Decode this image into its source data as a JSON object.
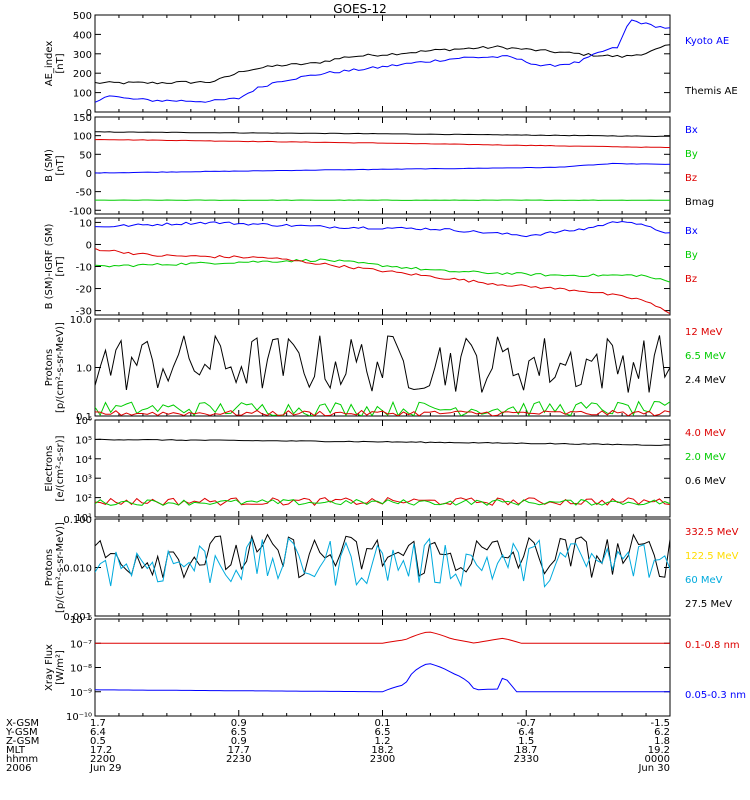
{
  "title": "GOES-12",
  "panels": [
    {
      "id": "ae",
      "ylabel": [
        "AE_index",
        "[nT]"
      ],
      "yscale": "linear",
      "ylim": [
        0,
        500
      ],
      "ticks": [
        "0",
        "100",
        "200",
        "300",
        "400",
        "500"
      ],
      "tickValues": [
        0,
        100,
        200,
        300,
        400,
        500
      ],
      "legend": [
        {
          "label": "Kyoto AE",
          "color": "#0000ff"
        },
        {
          "label": "Themis AE",
          "color": "#000000"
        }
      ]
    },
    {
      "id": "bsm",
      "ylabel": [
        "B (SM)",
        "[nT]"
      ],
      "yscale": "linear",
      "ylim": [
        -110,
        150
      ],
      "ticks": [
        "-100",
        "-50",
        "0",
        "50",
        "100",
        "150"
      ],
      "tickValues": [
        -100,
        -50,
        0,
        50,
        100,
        150
      ],
      "legend": [
        {
          "label": "Bx",
          "color": "#0000ff"
        },
        {
          "label": "By",
          "color": "#00cc00"
        },
        {
          "label": "Bz",
          "color": "#dd0000"
        },
        {
          "label": "Bmag",
          "color": "#000000"
        }
      ]
    },
    {
      "id": "bigrf",
      "ylabel": [
        "B (SM)-IGRF (SM)",
        "[nT]"
      ],
      "yscale": "linear",
      "ylim": [
        -32,
        12
      ],
      "ticks": [
        "-30",
        "-20",
        "-10",
        "0",
        "10"
      ],
      "tickValues": [
        -30,
        -20,
        -10,
        0,
        10
      ],
      "legend": [
        {
          "label": "Bx",
          "color": "#0000ff"
        },
        {
          "label": "By",
          "color": "#00cc00"
        },
        {
          "label": "Bz",
          "color": "#dd0000"
        }
      ]
    },
    {
      "id": "protons1",
      "ylabel": [
        "Protons",
        "[p/(cm²-s-sr-MeV)]"
      ],
      "yscale": "log",
      "ylim": [
        0.1,
        10
      ],
      "ticks": [
        "0.1",
        "1.0",
        "10.0"
      ],
      "tickValues": [
        0.1,
        1,
        10
      ],
      "legend": [
        {
          "label": "12 MeV",
          "color": "#dd0000"
        },
        {
          "label": "6.5 MeV",
          "color": "#00cc00"
        },
        {
          "label": "2.4 MeV",
          "color": "#000000"
        }
      ]
    },
    {
      "id": "electrons",
      "ylabel": [
        "Electrons",
        "[e/(cm²-s-sr)]"
      ],
      "yscale": "log",
      "ylim": [
        10,
        1000000
      ],
      "ticks": [
        "10¹",
        "10²",
        "10³",
        "10⁴",
        "10⁵",
        "10⁶"
      ],
      "tickValues": [
        10,
        100,
        1000,
        10000,
        100000,
        1000000
      ],
      "legend": [
        {
          "label": "4.0 MeV",
          "color": "#dd0000"
        },
        {
          "label": "2.0 MeV",
          "color": "#00cc00"
        },
        {
          "label": "0.6 MeV",
          "color": "#000000"
        }
      ]
    },
    {
      "id": "protons2",
      "ylabel": [
        "Protons",
        "[p/(cm²-s-sr-MeV)]"
      ],
      "yscale": "log",
      "ylim": [
        0.001,
        0.1
      ],
      "ticks": [
        "0.001",
        "0.010",
        "0.100"
      ],
      "tickValues": [
        0.001,
        0.01,
        0.1
      ],
      "legend": [
        {
          "label": "332.5 MeV",
          "color": "#dd0000"
        },
        {
          "label": "122.5 MeV",
          "color": "#ffdd00"
        },
        {
          "label": "60 MeV",
          "color": "#00aadd"
        },
        {
          "label": "27.5 MeV",
          "color": "#000000"
        }
      ]
    },
    {
      "id": "xray",
      "ylabel": [
        "Xray Flux",
        "[W/m²]"
      ],
      "yscale": "log",
      "ylim": [
        1e-10,
        1e-06
      ],
      "ticks": [
        "10⁻¹⁰",
        "10⁻⁹",
        "10⁻⁸",
        "10⁻⁷",
        "10⁻⁶"
      ],
      "tickValues": [
        1e-10,
        1e-09,
        1e-08,
        1e-07,
        1e-06
      ],
      "legend": [
        {
          "label": "0.1-0.8 nm",
          "color": "#dd0000"
        },
        {
          "label": "0.05-0.3 nm",
          "color": "#0000ff"
        }
      ]
    }
  ],
  "footer": {
    "rowLabels": [
      "X-GSM",
      "Y-GSM",
      "Z-GSM",
      "MLT",
      "hhmm",
      "2006"
    ],
    "columns": [
      [
        "1.7",
        "6.4",
        "0.5",
        "17.2",
        "2200",
        "Jun 29"
      ],
      [
        "0.9",
        "6.5",
        "0.9",
        "17.7",
        "2230",
        ""
      ],
      [
        "0.1",
        "6.5",
        "1.2",
        "18.2",
        "2300",
        ""
      ],
      [
        "-0.7",
        "6.4",
        "1.5",
        "18.7",
        "2330",
        ""
      ],
      [
        "-1.5",
        "6.2",
        "1.8",
        "19.2",
        "0000",
        "Jun 30"
      ]
    ]
  },
  "chart_data": {
    "type": "line",
    "title": "GOES-12",
    "x": [
      "2200",
      "2230",
      "2300",
      "2330",
      "0000"
    ],
    "xlabel": "",
    "panels": [
      {
        "ylabel": "AE_index [nT]",
        "series": [
          {
            "name": "Themis AE",
            "color": "#000000",
            "points": [
              [
                0,
                150
              ],
              [
                0.1,
                150
              ],
              [
                0.2,
                155
              ],
              [
                0.22,
                170
              ],
              [
                0.26,
                215
              ],
              [
                0.32,
                240
              ],
              [
                0.38,
                250
              ],
              [
                0.44,
                285
              ],
              [
                0.52,
                300
              ],
              [
                0.6,
                320
              ],
              [
                0.7,
                335
              ],
              [
                0.78,
                315
              ],
              [
                0.86,
                295
              ],
              [
                0.92,
                285
              ],
              [
                0.96,
                305
              ],
              [
                1,
                345
              ]
            ]
          },
          {
            "name": "Kyoto AE",
            "color": "#0000ff",
            "points": [
              [
                0,
                45
              ],
              [
                0.02,
                90
              ],
              [
                0.05,
                70
              ],
              [
                0.1,
                60
              ],
              [
                0.2,
                55
              ],
              [
                0.25,
                70
              ],
              [
                0.28,
                120
              ],
              [
                0.32,
                160
              ],
              [
                0.4,
                200
              ],
              [
                0.48,
                225
              ],
              [
                0.56,
                255
              ],
              [
                0.64,
                280
              ],
              [
                0.72,
                285
              ],
              [
                0.78,
                235
              ],
              [
                0.84,
                255
              ],
              [
                0.88,
                310
              ],
              [
                0.91,
                335
              ],
              [
                0.93,
                475
              ],
              [
                0.97,
                445
              ],
              [
                1,
                430
              ]
            ]
          }
        ]
      },
      {
        "ylabel": "B (SM) [nT]",
        "series": [
          {
            "name": "Bmag",
            "color": "#000000",
            "points": [
              [
                0,
                110
              ],
              [
                0.5,
                105
              ],
              [
                1,
                98
              ]
            ]
          },
          {
            "name": "Bz",
            "color": "#dd0000",
            "points": [
              [
                0,
                90
              ],
              [
                0.5,
                80
              ],
              [
                1,
                68
              ]
            ]
          },
          {
            "name": "Bx",
            "color": "#0000ff",
            "points": [
              [
                0,
                0
              ],
              [
                0.4,
                8
              ],
              [
                0.8,
                15
              ],
              [
                0.9,
                25
              ],
              [
                1,
                23
              ]
            ]
          },
          {
            "name": "By",
            "color": "#00cc00",
            "points": [
              [
                0,
                -73
              ],
              [
                1,
                -73
              ]
            ]
          }
        ]
      },
      {
        "ylabel": "B (SM)-IGRF (SM) [nT]",
        "series": [
          {
            "name": "Bx",
            "color": "#0000ff",
            "points": [
              [
                0,
                8
              ],
              [
                0.2,
                10
              ],
              [
                0.4,
                8
              ],
              [
                0.6,
                7
              ],
              [
                0.75,
                4
              ],
              [
                0.85,
                7
              ],
              [
                0.92,
                11
              ],
              [
                1,
                5
              ]
            ]
          },
          {
            "name": "By",
            "color": "#00cc00",
            "points": [
              [
                0,
                -10
              ],
              [
                0.25,
                -8
              ],
              [
                0.4,
                -7
              ],
              [
                0.6,
                -12
              ],
              [
                0.8,
                -14
              ],
              [
                0.95,
                -14
              ],
              [
                1,
                -17
              ]
            ]
          },
          {
            "name": "Bz",
            "color": "#dd0000",
            "points": [
              [
                0,
                -2
              ],
              [
                0.1,
                -5
              ],
              [
                0.3,
                -6
              ],
              [
                0.5,
                -12
              ],
              [
                0.7,
                -18
              ],
              [
                0.85,
                -21
              ],
              [
                0.95,
                -25
              ],
              [
                1,
                -31
              ]
            ]
          }
        ]
      },
      {
        "ylabel": "Protons [p/(cm²-s-sr-MeV)]",
        "series": [
          {
            "name": "2.4 MeV",
            "color": "#000000",
            "y_range": [
              0.3,
              5
            ]
          },
          {
            "name": "6.5 MeV",
            "color": "#00cc00",
            "y_range": [
              0.1,
              0.2
            ]
          },
          {
            "name": "12 MeV",
            "color": "#dd0000",
            "y_range": [
              0.1,
              0.13
            ]
          }
        ]
      },
      {
        "ylabel": "Electrons [e/(cm²-s-sr)]",
        "series": [
          {
            "name": "0.6 MeV",
            "color": "#000000",
            "points": [
              [
                0,
                100000
              ],
              [
                1,
                50000
              ]
            ]
          },
          {
            "name": "4.0 MeV",
            "color": "#dd0000",
            "y_range": [
              40,
              100
            ]
          },
          {
            "name": "2.0 MeV",
            "color": "#00cc00",
            "y_range": [
              40,
              80
            ]
          }
        ]
      },
      {
        "ylabel": "Protons [p/(cm²-s-sr-MeV)]",
        "series": [
          {
            "name": "27.5 MeV",
            "color": "#000000",
            "y_range": [
              0.006,
              0.05
            ]
          },
          {
            "name": "60 MeV",
            "color": "#00aadd",
            "y_range": [
              0.004,
              0.04
            ]
          },
          {
            "name": "122.5 MeV",
            "color": "#ffdd00"
          },
          {
            "name": "332.5 MeV",
            "color": "#dd0000"
          }
        ]
      },
      {
        "ylabel": "Xray Flux [W/m²]",
        "series": [
          {
            "name": "0.1-0.8 nm",
            "color": "#dd0000",
            "points": [
              [
                0,
                1e-07
              ],
              [
                0.5,
                1e-07
              ],
              [
                0.54,
                1.4e-07
              ],
              [
                0.58,
                3e-07
              ],
              [
                0.62,
                1.5e-07
              ],
              [
                0.66,
                1e-07
              ],
              [
                0.71,
                1.6e-07
              ],
              [
                0.74,
                1e-07
              ],
              [
                1,
                1e-07
              ]
            ]
          },
          {
            "name": "0.05-0.3 nm",
            "color": "#0000ff",
            "points": [
              [
                0,
                1.2e-09
              ],
              [
                0.5,
                1e-09
              ],
              [
                0.54,
                2e-09
              ],
              [
                0.58,
                1.5e-08
              ],
              [
                0.62,
                6e-09
              ],
              [
                0.66,
                1.2e-09
              ],
              [
                0.7,
                1.3e-09
              ],
              [
                0.71,
                4e-09
              ],
              [
                0.73,
                1e-09
              ],
              [
                1,
                1e-09
              ]
            ]
          }
        ]
      }
    ]
  }
}
